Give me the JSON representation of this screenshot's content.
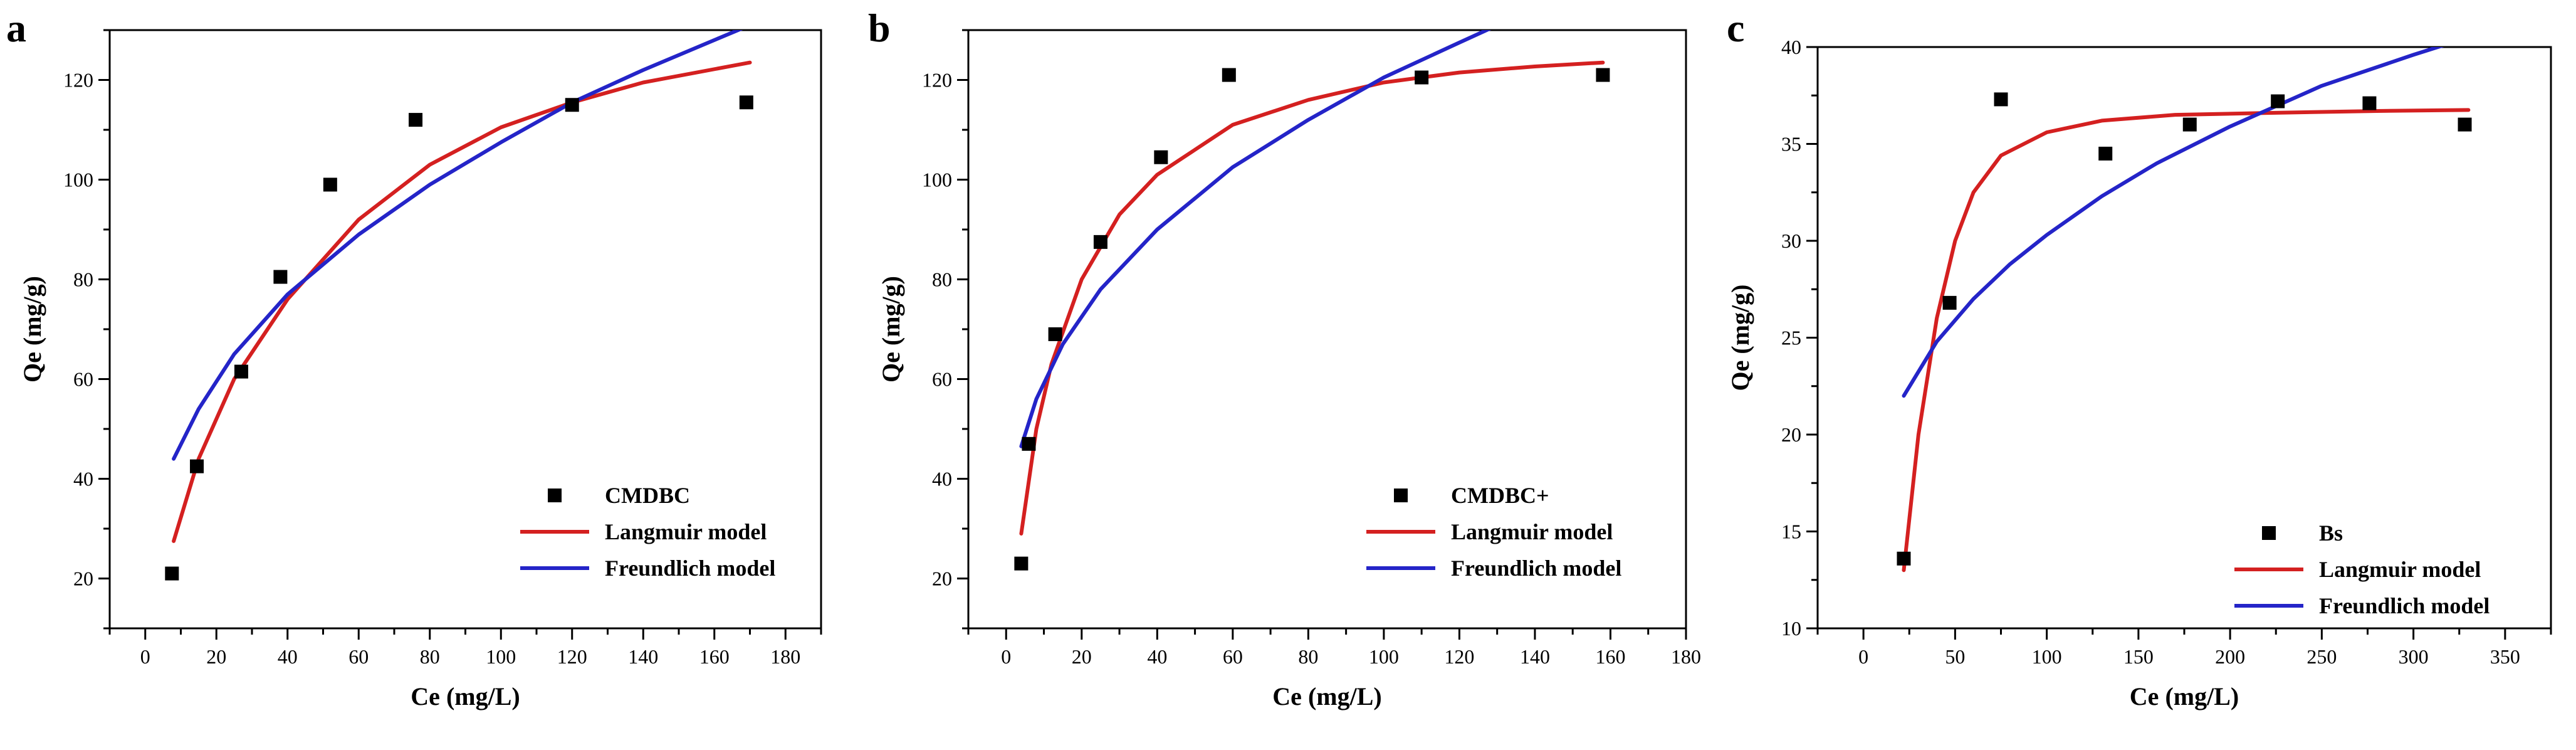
{
  "colors": {
    "langmuir": "#d42020",
    "freundlich": "#2424c8",
    "points": "#000000"
  },
  "chart_data": [
    {
      "type": "scatter",
      "panel_label": "a",
      "xlabel": "Ce (mg/L)",
      "ylabel": "Qe (mg/g)",
      "xlim": [
        -10,
        190
      ],
      "ylim": [
        10,
        130
      ],
      "xticks": [
        0,
        20,
        40,
        60,
        80,
        100,
        120,
        140,
        160,
        180
      ],
      "yticks": [
        20,
        40,
        60,
        80,
        100,
        120
      ],
      "legend_position": "bottom-right",
      "series": [
        {
          "name": "CMDBC",
          "kind": "points",
          "x": [
            7.5,
            14.5,
            27,
            38,
            52,
            76,
            120,
            169
          ],
          "y": [
            21,
            42.5,
            61.5,
            80.5,
            99,
            112,
            115,
            115.5
          ]
        },
        {
          "name": "Langmuir model",
          "kind": "line",
          "x": [
            8,
            15,
            25,
            40,
            60,
            80,
            100,
            120,
            140,
            170
          ],
          "y": [
            27.5,
            44,
            60,
            76,
            92,
            103,
            110.5,
            115.5,
            119.5,
            123.5
          ]
        },
        {
          "name": "Freundlich model",
          "kind": "line",
          "x": [
            8,
            15,
            25,
            40,
            60,
            80,
            100,
            120,
            140,
            160,
            170
          ],
          "y": [
            44,
            54,
            65,
            77,
            89,
            99,
            107.5,
            115.5,
            122,
            128,
            131
          ]
        }
      ]
    },
    {
      "type": "scatter",
      "panel_label": "b",
      "xlabel": "Ce (mg/L)",
      "ylabel": "Qe (mg/g)",
      "xlim": [
        -10,
        180
      ],
      "ylim": [
        10,
        130
      ],
      "xticks": [
        0,
        20,
        40,
        60,
        80,
        100,
        120,
        140,
        160,
        180
      ],
      "yticks": [
        20,
        40,
        60,
        80,
        100,
        120
      ],
      "legend_position": "bottom-right",
      "series": [
        {
          "name": "CMDBC+",
          "kind": "points",
          "x": [
            4,
            6,
            13,
            25,
            41,
            59,
            110,
            158
          ],
          "y": [
            23,
            47,
            69,
            87.5,
            104.5,
            121,
            120.5,
            121
          ]
        },
        {
          "name": "Langmuir model",
          "kind": "line",
          "x": [
            4,
            8,
            12,
            20,
            30,
            40,
            60,
            80,
            100,
            120,
            140,
            158
          ],
          "y": [
            29,
            50,
            63,
            80,
            93,
            101,
            111,
            116,
            119.5,
            121.5,
            122.7,
            123.5
          ]
        },
        {
          "name": "Freundlich model",
          "kind": "line",
          "x": [
            4,
            8,
            15,
            25,
            40,
            60,
            80,
            100,
            120,
            133
          ],
          "y": [
            46.5,
            56,
            67,
            78,
            90,
            102.5,
            112,
            120.5,
            127.5,
            132
          ]
        }
      ]
    },
    {
      "type": "scatter",
      "panel_label": "c",
      "xlabel": "Ce (mg/L)",
      "ylabel": "Qe (mg/g)",
      "xlim": [
        -25,
        375
      ],
      "ylim": [
        10,
        40
      ],
      "xticks": [
        0,
        50,
        100,
        150,
        200,
        250,
        300,
        350
      ],
      "yticks": [
        10,
        15,
        20,
        25,
        30,
        35,
        40
      ],
      "legend_position": "bottom-right",
      "series": [
        {
          "name": "Bs",
          "kind": "points",
          "x": [
            22,
            47,
            75,
            132,
            178,
            226,
            276,
            328
          ],
          "y": [
            13.6,
            26.8,
            37.3,
            34.5,
            36,
            37.2,
            37.1,
            36
          ]
        },
        {
          "name": "Langmuir model",
          "kind": "line",
          "x": [
            22,
            30,
            40,
            50,
            60,
            75,
            100,
            130,
            170,
            220,
            280,
            330
          ],
          "y": [
            13,
            20,
            26,
            30,
            32.5,
            34.4,
            35.6,
            36.2,
            36.5,
            36.6,
            36.7,
            36.75
          ]
        },
        {
          "name": "Freundlich model",
          "kind": "line",
          "x": [
            22,
            40,
            60,
            80,
            100,
            130,
            160,
            200,
            250,
            300,
            330
          ],
          "y": [
            22,
            24.8,
            27,
            28.8,
            30.3,
            32.3,
            34,
            35.9,
            38,
            39.6,
            40.5
          ]
        }
      ]
    }
  ]
}
